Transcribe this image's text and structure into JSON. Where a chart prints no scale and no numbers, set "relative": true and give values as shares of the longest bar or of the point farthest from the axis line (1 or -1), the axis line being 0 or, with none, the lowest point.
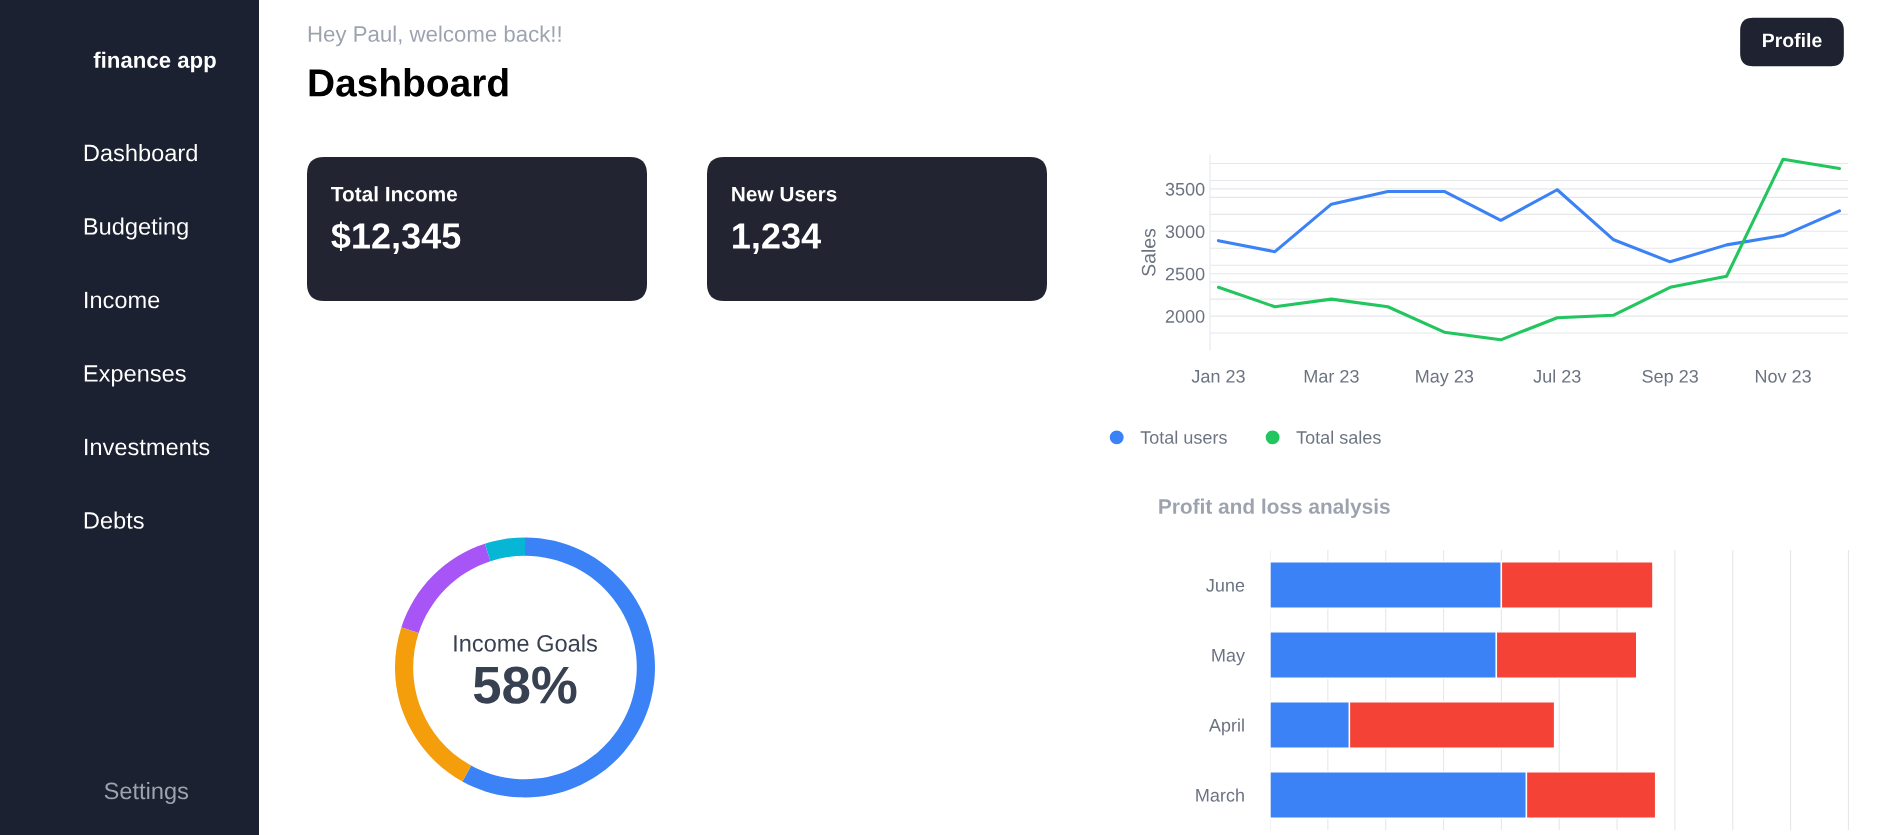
{
  "chart_data": [
    {
      "type": "other",
      "annotations": [
        "finance app",
        "Dashboard",
        "Budgeting",
        "Income",
        "Expenses",
        "Investments",
        "Debts",
        "Settings"
      ]
    },
    {
      "type": "other",
      "title": "Dashboard",
      "subtitle": "Hey Paul, welcome back!!",
      "annotations": [
        "Profile"
      ]
    },
    {
      "type": "other",
      "title": "Total Income",
      "annotations": [
        "$12,345"
      ]
    },
    {
      "type": "other",
      "title": "New Users",
      "annotations": [
        "1,234"
      ]
    },
    {
      "type": "line",
      "ylabel": "Sales",
      "categories": [
        "Jan 23",
        null,
        "Mar 23",
        null,
        "May 23",
        null,
        "Jul 23",
        null,
        "Sep 23",
        null,
        "Nov 23",
        null
      ],
      "series": [
        {
          "name": "Total users",
          "color": "#3b82f6",
          "values": [
            2890,
            2760,
            3320,
            3470,
            3470,
            3130,
            3490,
            2900,
            2640,
            2840,
            2950,
            3240
          ]
        },
        {
          "name": "Total sales",
          "color": "#22c55e",
          "values": [
            2340,
            2110,
            2200,
            2110,
            1810,
            1720,
            1980,
            2010,
            2340,
            2470,
            3850,
            3740
          ]
        }
      ],
      "ylim": [
        1600,
        3900
      ],
      "yticks": [
        {
          "value": 1800,
          "label": null
        },
        2000,
        {
          "value": 2200,
          "label": null
        },
        {
          "value": 2400,
          "label": null
        },
        2500,
        {
          "value": 2600,
          "label": null
        },
        {
          "value": 2800,
          "label": null
        },
        3000,
        {
          "value": 3200,
          "label": null
        },
        {
          "value": 3400,
          "label": null
        },
        3500,
        {
          "value": 3600,
          "label": null
        },
        {
          "value": 3800,
          "label": null
        }
      ],
      "grid": "y",
      "legend": "bottom",
      "marker": "none",
      "line_style": "solid"
    },
    {
      "type": "donut",
      "categories": [
        null,
        null,
        null,
        null
      ],
      "values": [
        58,
        22,
        15,
        5
      ],
      "colors": [
        "#3b82f6",
        "#f59e0b",
        "#a855f7",
        "#06b6d4"
      ],
      "annotations": [
        "Income Goals",
        "58%"
      ]
    },
    {
      "type": "bar",
      "title": "Profit and loss analysis",
      "orientation": "horizontal",
      "stacked": true,
      "relative": true,
      "categories": [
        "June",
        "May",
        "April",
        "March"
      ],
      "series": [
        {
          "color": "#3b82f6",
          "values": [
            0.6,
            0.587,
            0.206,
            0.665
          ]
        },
        {
          "color": "#f44336",
          "values": [
            0.393,
            0.364,
            0.532,
            0.335
          ]
        }
      ],
      "grid": "x",
      "tick_labels": "y"
    }
  ]
}
